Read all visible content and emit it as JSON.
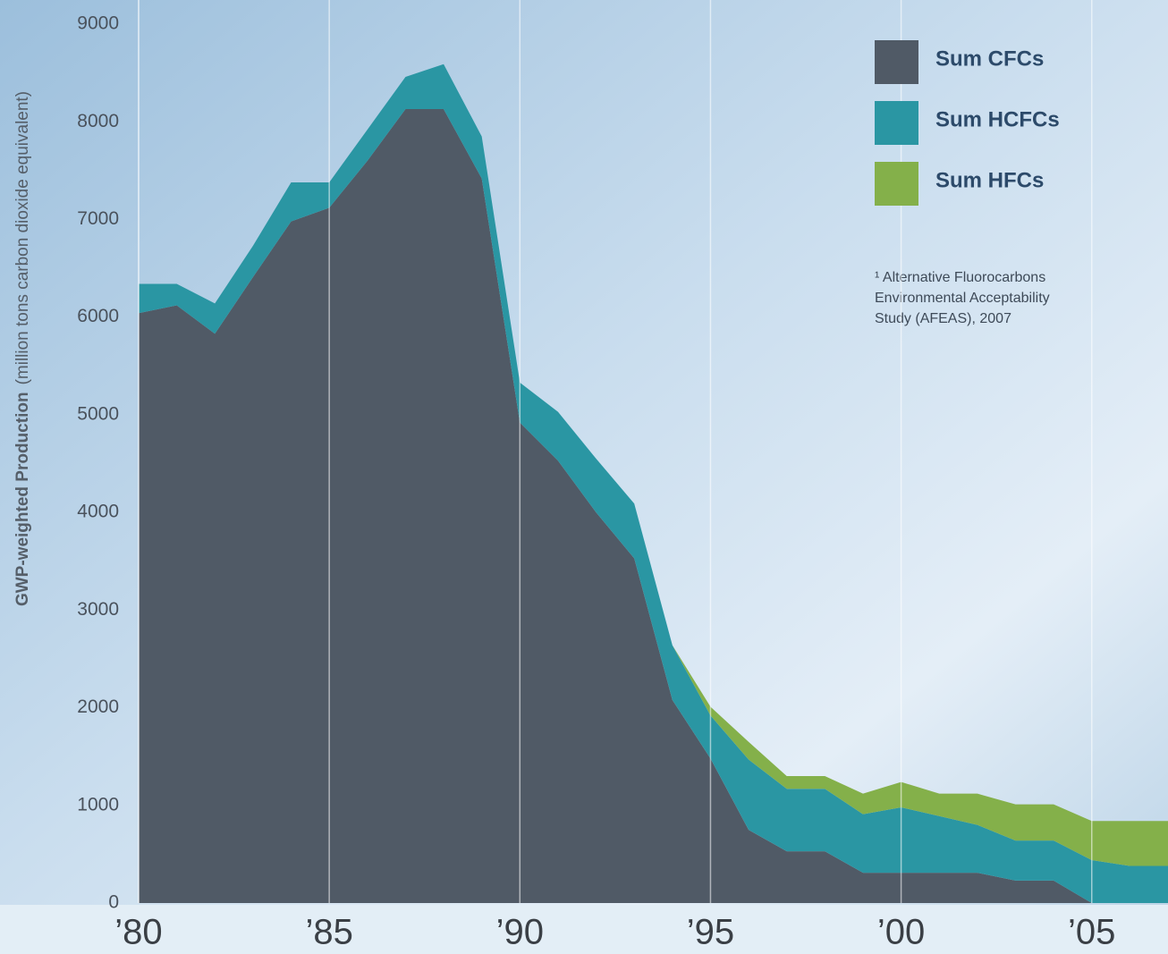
{
  "chart_data": {
    "type": "stacked-area",
    "y_label_bold": "GWP-weighted Production",
    "y_label_rest": "(million tons carbon dioxide equivalent)",
    "footnote": [
      "¹ Alternative Fluorocarbons",
      "Environmental Acceptability",
      "Study (AFEAS), 2007"
    ],
    "legend": "top-right",
    "grid": true,
    "x": [
      1980,
      1981,
      1982,
      1983,
      1984,
      1985,
      1986,
      1987,
      1988,
      1989,
      1990,
      1991,
      1992,
      1993,
      1994,
      1995,
      1996,
      1997,
      1998,
      1999,
      2000,
      2001,
      2002,
      2003,
      2004,
      2005,
      2006,
      2007
    ],
    "xlim": [
      1980,
      2007
    ],
    "xticks": [
      {
        "value": 1980,
        "label": "’80"
      },
      {
        "value": 1985,
        "label": "’85"
      },
      {
        "value": 1990,
        "label": "’90"
      },
      {
        "value": 1995,
        "label": "’95"
      },
      {
        "value": 2000,
        "label": "’00"
      },
      {
        "value": 2005,
        "label": "’05"
      }
    ],
    "ylim": [
      0,
      9000
    ],
    "yticks": [
      0,
      1000,
      2000,
      3000,
      4000,
      5000,
      6000,
      7000,
      8000,
      9000
    ],
    "series": [
      {
        "name": "Sum CFCs",
        "color": "#505a66",
        "values": [
          6040,
          6120,
          5830,
          6410,
          6980,
          7120,
          7600,
          8130,
          8130,
          7420,
          4920,
          4530,
          4000,
          3530,
          2080,
          1480,
          750,
          530,
          530,
          310,
          310,
          310,
          310,
          230,
          230,
          0,
          0,
          0
        ]
      },
      {
        "name": "Sum HCFCs",
        "color": "#2a96a3",
        "values": [
          300,
          220,
          310,
          320,
          400,
          260,
          320,
          330,
          460,
          430,
          410,
          500,
          550,
          560,
          560,
          440,
          720,
          640,
          640,
          600,
          670,
          580,
          490,
          410,
          410,
          440,
          380,
          380
        ]
      },
      {
        "name": "Sum HFCs",
        "color": "#84b04a",
        "values": [
          0,
          0,
          0,
          0,
          0,
          0,
          0,
          0,
          0,
          0,
          0,
          0,
          0,
          0,
          0,
          90,
          180,
          130,
          130,
          210,
          260,
          230,
          320,
          370,
          370,
          400,
          460,
          460
        ]
      }
    ]
  }
}
